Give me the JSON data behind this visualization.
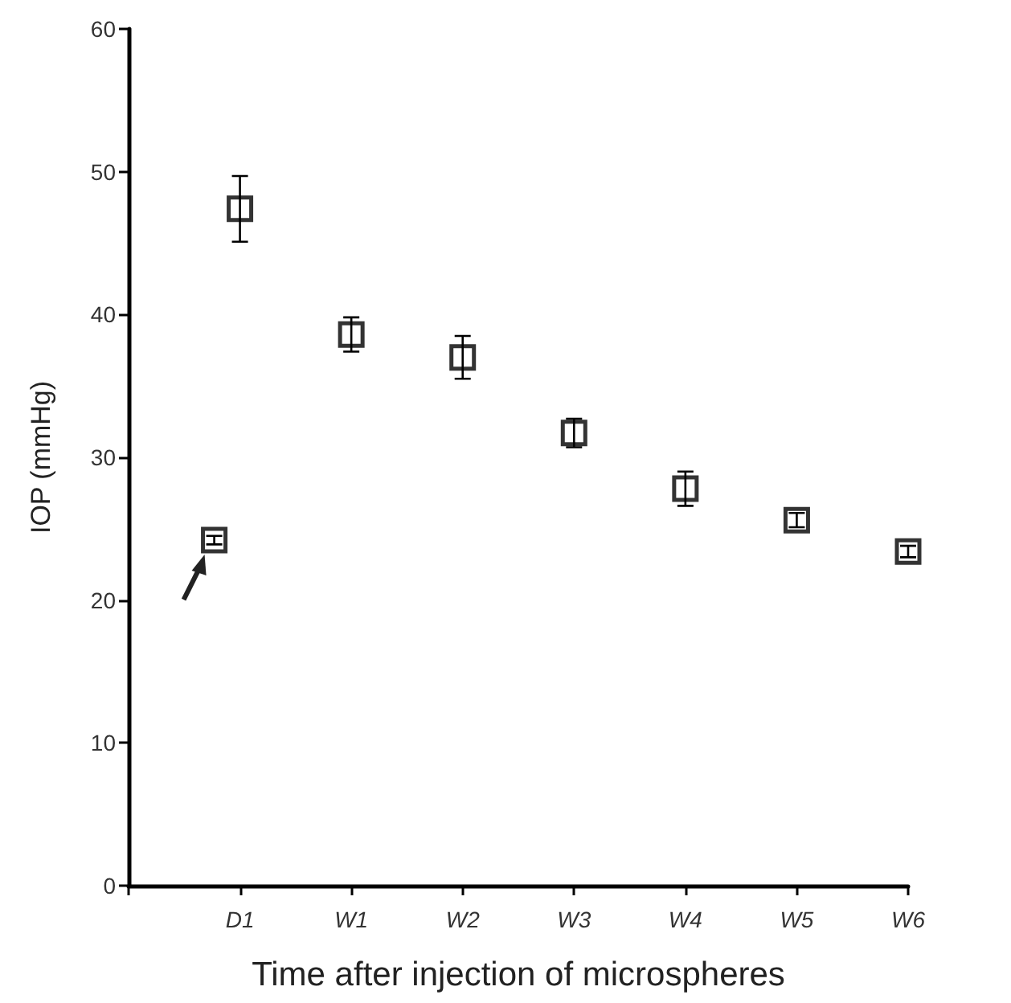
{
  "chart_data": {
    "type": "scatter",
    "xlabel": "Time after injection of microspheres",
    "ylabel": "IOP (mmHg)",
    "categories": [
      null,
      "D1",
      "W1",
      "W2",
      "W3",
      "W4",
      "W5",
      "W6"
    ],
    "series": [
      {
        "color": "#000000",
        "values": [
          null,
          24.2,
          null,
          null,
          null,
          null,
          null,
          null
        ],
        "errors": [
          null,
          0.3,
          null,
          null,
          null,
          null,
          null,
          null
        ]
      },
      {
        "color": "#000000",
        "values": [
          null,
          47.4,
          38.6,
          37.0,
          31.7,
          27.8,
          25.6,
          23.4
        ],
        "errors": [
          null,
          2.3,
          1.2,
          1.5,
          1.0,
          1.2,
          0.5,
          0.4
        ]
      }
    ],
    "marker": "square",
    "ylim": [
      0,
      60
    ],
    "yticks": [
      0,
      10,
      20,
      30,
      40,
      50,
      60
    ],
    "grid": false
  }
}
